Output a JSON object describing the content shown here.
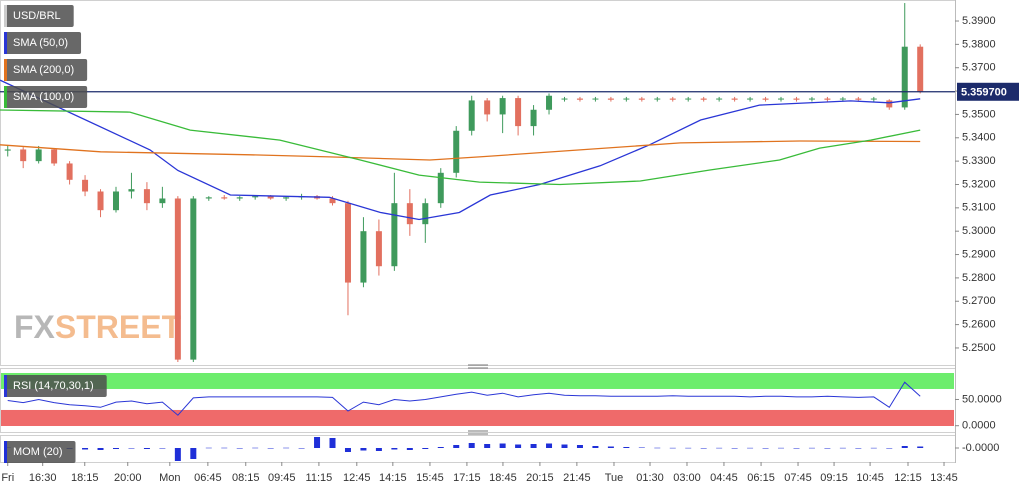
{
  "chart_data": [
    {
      "type": "candlestick",
      "watermark": [
        "FX",
        "STREET"
      ],
      "xlim": [
        -0.5,
        61.25
      ],
      "ylim": [
        5.2427,
        5.399
      ],
      "yticks": [
        {
          "value": 5.25,
          "label": "5.2500"
        },
        {
          "value": 5.26,
          "label": "5.2600"
        },
        {
          "value": 5.27,
          "label": "5.2700"
        },
        {
          "value": 5.28,
          "label": "5.2800"
        },
        {
          "value": 5.29,
          "label": "5.2900"
        },
        {
          "value": 5.3,
          "label": "5.3000"
        },
        {
          "value": 5.31,
          "label": "5.3100"
        },
        {
          "value": 5.32,
          "label": "5.3200"
        },
        {
          "value": 5.33,
          "label": "5.3300"
        },
        {
          "value": 5.34,
          "label": "5.3400"
        },
        {
          "value": 5.35,
          "label": "5.3500"
        },
        {
          "value": 5.36,
          "label": "5.3600"
        },
        {
          "value": 5.37,
          "label": "5.3700"
        },
        {
          "value": 5.38,
          "label": "5.3800"
        },
        {
          "value": 5.39,
          "label": "5.3900"
        }
      ],
      "name": "USD/BRL",
      "up_color": "#3f9a5c",
      "down_color": "#e2705f",
      "open": [
        5.3345,
        5.335,
        5.33,
        5.335,
        5.329,
        5.322,
        5.317,
        5.309,
        5.317,
        5.318,
        5.312,
        5.314,
        5.245,
        5.314,
        5.3145,
        5.314,
        5.3145,
        5.315,
        5.314,
        5.3145,
        5.315,
        5.314,
        5.312,
        5.278,
        5.3,
        5.285,
        5.312,
        5.303,
        5.312,
        5.325,
        5.343,
        5.356,
        5.35,
        5.357,
        5.345,
        5.352,
        5.3565,
        5.3568,
        5.3565,
        5.3568,
        5.3565,
        5.3568,
        5.3565,
        5.3568,
        5.3565,
        5.3568,
        5.3565,
        5.3568,
        5.3565,
        5.3568,
        5.3565,
        5.3568,
        5.3565,
        5.3568,
        5.3565,
        5.3568,
        5.3565,
        5.356,
        5.353,
        5.379
      ],
      "high": [
        5.3365,
        5.336,
        5.3365,
        5.3355,
        5.33,
        5.324,
        5.318,
        5.319,
        5.325,
        5.321,
        5.319,
        5.315,
        5.315,
        5.315,
        5.3155,
        5.315,
        5.3155,
        5.3155,
        5.315,
        5.316,
        5.3155,
        5.315,
        5.313,
        5.306,
        5.305,
        5.325,
        5.318,
        5.314,
        5.327,
        5.345,
        5.358,
        5.357,
        5.358,
        5.358,
        5.354,
        5.359,
        5.3575,
        5.3575,
        5.3575,
        5.3575,
        5.3575,
        5.3575,
        5.3575,
        5.3575,
        5.3575,
        5.3575,
        5.3575,
        5.3575,
        5.3575,
        5.3575,
        5.3575,
        5.3575,
        5.3575,
        5.3575,
        5.3575,
        5.3575,
        5.3575,
        5.3565,
        5.3977,
        5.38
      ],
      "low": [
        5.332,
        5.327,
        5.329,
        5.328,
        5.32,
        5.315,
        5.306,
        5.308,
        5.314,
        5.309,
        5.31,
        5.244,
        5.244,
        5.313,
        5.3135,
        5.313,
        5.3135,
        5.3135,
        5.313,
        5.3135,
        5.3135,
        5.311,
        5.264,
        5.276,
        5.281,
        5.283,
        5.298,
        5.295,
        5.31,
        5.323,
        5.341,
        5.347,
        5.342,
        5.341,
        5.341,
        5.35,
        5.3555,
        5.3555,
        5.3555,
        5.3555,
        5.3555,
        5.3555,
        5.3555,
        5.3555,
        5.3555,
        5.3555,
        5.3555,
        5.3555,
        5.3555,
        5.3555,
        5.3555,
        5.3555,
        5.3555,
        5.3555,
        5.3555,
        5.3555,
        5.3555,
        5.352,
        5.352,
        5.359
      ],
      "close": [
        5.335,
        5.33,
        5.335,
        5.329,
        5.322,
        5.317,
        5.309,
        5.317,
        5.318,
        5.312,
        5.314,
        5.245,
        5.314,
        5.3145,
        5.314,
        5.3145,
        5.315,
        5.314,
        5.3145,
        5.315,
        5.314,
        5.312,
        5.278,
        5.3,
        5.285,
        5.312,
        5.303,
        5.312,
        5.325,
        5.343,
        5.356,
        5.35,
        5.357,
        5.345,
        5.352,
        5.358,
        5.3568,
        5.3563,
        5.3568,
        5.3563,
        5.3568,
        5.3563,
        5.3568,
        5.3563,
        5.3568,
        5.3563,
        5.3568,
        5.3563,
        5.3568,
        5.3563,
        5.3568,
        5.3563,
        5.3568,
        5.3563,
        5.3568,
        5.3563,
        5.3568,
        5.353,
        5.379,
        5.3597
      ],
      "last_price": 5.3597,
      "last_price_label": "5.359700",
      "last_price_color": "#1c2b6b",
      "series": [
        {
          "name": "SMA (50,0)",
          "color": "#2a36d6",
          "x": [
            -0.5,
            9.2,
            11,
            14.4,
            20.8,
            24.1,
            26.6,
            29.2,
            31.2,
            34.4,
            38.3,
            41.5,
            44.8,
            48.6,
            54.5,
            57,
            59
          ],
          "values": [
            5.3647,
            5.3348,
            5.326,
            5.3155,
            5.3145,
            5.308,
            5.305,
            5.308,
            5.3155,
            5.32,
            5.328,
            5.337,
            5.3476,
            5.354,
            5.3558,
            5.355,
            5.3567
          ]
        },
        {
          "name": "SMA (200,0)",
          "color": "#e0731f",
          "x": [
            -0.5,
            6,
            15.7,
            20.8,
            27.3,
            30.5,
            37,
            43.5,
            51.2,
            59
          ],
          "values": [
            5.337,
            5.334,
            5.3327,
            5.3318,
            5.3305,
            5.3318,
            5.3348,
            5.3378,
            5.3386,
            5.3384
          ]
        },
        {
          "name": "SMA (100,0)",
          "color": "#39bb39",
          "x": [
            -0.5,
            7.9,
            11.8,
            17.6,
            22.8,
            26.6,
            30.5,
            35.7,
            40.9,
            45.4,
            49.9,
            52.5,
            55.8,
            59
          ],
          "values": [
            5.3519,
            5.351,
            5.3433,
            5.339,
            5.3305,
            5.324,
            5.321,
            5.32,
            5.3215,
            5.3262,
            5.3305,
            5.3356,
            5.339,
            5.3433
          ]
        }
      ]
    },
    {
      "type": "line",
      "xlim": [
        -0.5,
        61.25
      ],
      "ylim": [
        -12,
        110
      ],
      "yticks": [
        {
          "value": 50,
          "label": "50.0000"
        },
        {
          "value": 0,
          "label": "0.0000"
        }
      ],
      "overbought": 70,
      "oversold": 30,
      "overbought_color": "#6ded6d",
      "oversold_color": "#ef6a6a",
      "series": [
        {
          "name": "RSI (14,70,30,1)",
          "color": "#2a36d6",
          "values": [
            48,
            44,
            50,
            44,
            40,
            38,
            35,
            45,
            47,
            42,
            45,
            20,
            53,
            55,
            55,
            55,
            55,
            55,
            55,
            55,
            55,
            54,
            28,
            45,
            40,
            50,
            47,
            50,
            55,
            60,
            64,
            58,
            62,
            55,
            59,
            62,
            58,
            57,
            57,
            56,
            56,
            56,
            56,
            57,
            56,
            56,
            56,
            56,
            55,
            56,
            56,
            55,
            55,
            56,
            55,
            54,
            55,
            35,
            83,
            56
          ]
        }
      ]
    },
    {
      "type": "bar",
      "xlim": [
        -0.5,
        61.25
      ],
      "ylim": [
        -0.028,
        0.024
      ],
      "yticks": [
        {
          "value": 0,
          "label": "-0.0000"
        }
      ],
      "xticks": [
        {
          "value": 0,
          "label": "Fri"
        },
        {
          "value": 2.26,
          "label": "16:30"
        },
        {
          "value": 4.98,
          "label": "18:15"
        },
        {
          "value": 7.76,
          "label": "20:00"
        },
        {
          "value": 10.48,
          "label": "Mon"
        },
        {
          "value": 12.94,
          "label": "06:45"
        },
        {
          "value": 15.39,
          "label": "08:15"
        },
        {
          "value": 17.72,
          "label": "09:45"
        },
        {
          "value": 20.12,
          "label": "11:15"
        },
        {
          "value": 22.57,
          "label": "12:45"
        },
        {
          "value": 24.9,
          "label": "14:15"
        },
        {
          "value": 27.3,
          "label": "15:45"
        },
        {
          "value": 29.69,
          "label": "17:15"
        },
        {
          "value": 32.02,
          "label": "18:45"
        },
        {
          "value": 34.41,
          "label": "20:15"
        },
        {
          "value": 36.8,
          "label": "21:45"
        },
        {
          "value": 39.2,
          "label": "Tue"
        },
        {
          "value": 41.53,
          "label": "01:30"
        },
        {
          "value": 43.92,
          "label": "03:00"
        },
        {
          "value": 46.31,
          "label": "04:45"
        },
        {
          "value": 48.71,
          "label": "06:15"
        },
        {
          "value": 51.1,
          "label": "07:45"
        },
        {
          "value": 53.43,
          "label": "09:15"
        },
        {
          "value": 55.76,
          "label": "10:45"
        },
        {
          "value": 58.21,
          "label": "12:15"
        },
        {
          "value": 60.54,
          "label": "13:45"
        }
      ],
      "series": [
        {
          "name": "MOM (20)",
          "color": "#1f2fd8",
          "values": [
            0.001,
            -0.001,
            0.0005,
            -0.001,
            -0.002,
            -0.003,
            -0.004,
            -0.002,
            -0.001,
            -0.002,
            -0.001,
            -0.026,
            -0.022,
            0.0005,
            0.0005,
            0,
            0.0005,
            0,
            0.0005,
            0,
            0.022,
            0.02,
            -0.008,
            -0.005,
            -0.006,
            -0.003,
            -0.004,
            -0.002,
            0.002,
            0.006,
            0.01,
            0.008,
            0.009,
            0.007,
            0.008,
            0.009,
            0.007,
            0.006,
            0.004,
            0.003,
            0.002,
            0.001,
            0.0005,
            0.0003,
            0.0003,
            0,
            0.0003,
            0,
            0.0003,
            0,
            0.0003,
            0,
            0.0003,
            0,
            0.0003,
            0,
            0.0003,
            -0.001,
            0.004,
            0.003
          ]
        }
      ]
    }
  ]
}
